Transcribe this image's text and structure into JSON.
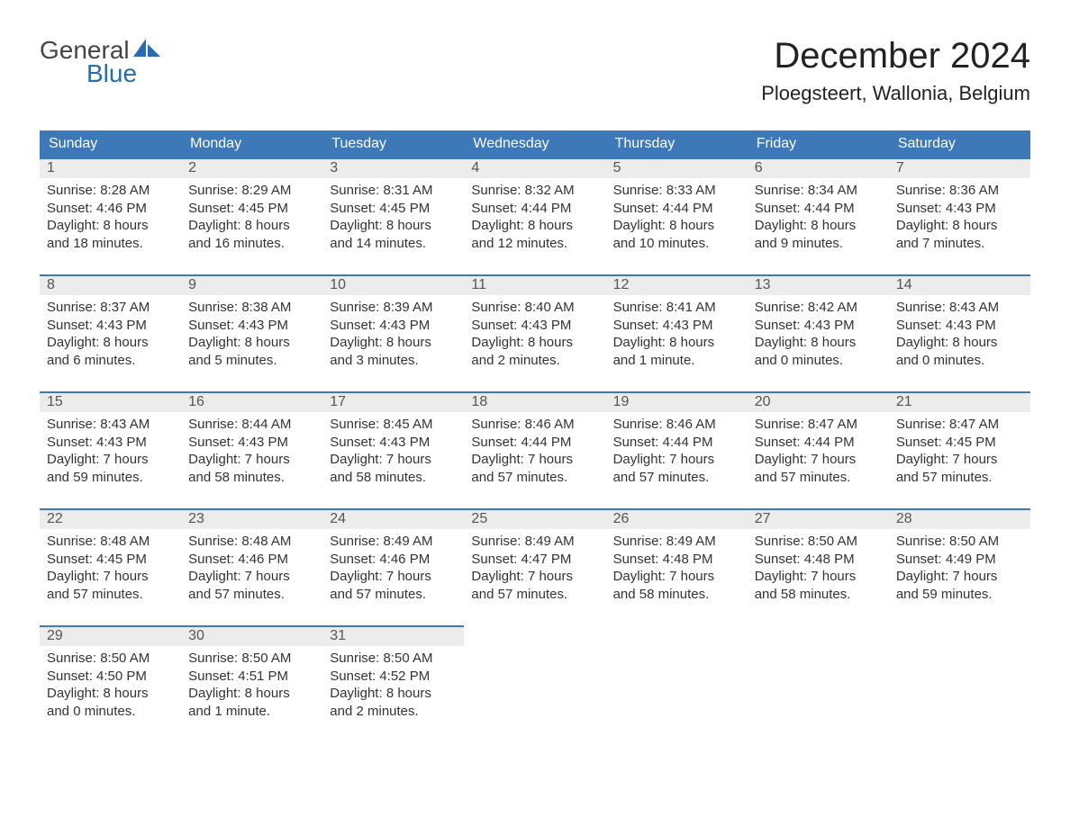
{
  "logo": {
    "word1": "General",
    "word2": "Blue"
  },
  "title": "December 2024",
  "location": "Ploegsteert, Wallonia, Belgium",
  "colors": {
    "header_bg": "#3d78b8",
    "header_text": "#ffffff",
    "daynum_bg": "#ececec",
    "daynum_text": "#555555",
    "body_text": "#333333",
    "accent_blue": "#2b6cb0",
    "page_bg": "#ffffff"
  },
  "typography": {
    "title_fontsize": 40,
    "location_fontsize": 22,
    "header_fontsize": 16,
    "body_fontsize": 15,
    "logo_fontsize": 28
  },
  "layout": {
    "columns": 7,
    "rows": 5,
    "start_weekday": "Sunday"
  },
  "weekdays": [
    "Sunday",
    "Monday",
    "Tuesday",
    "Wednesday",
    "Thursday",
    "Friday",
    "Saturday"
  ],
  "days": [
    {
      "n": 1,
      "sunrise": "8:28 AM",
      "sunset": "4:46 PM",
      "daylight": "8 hours and 18 minutes."
    },
    {
      "n": 2,
      "sunrise": "8:29 AM",
      "sunset": "4:45 PM",
      "daylight": "8 hours and 16 minutes."
    },
    {
      "n": 3,
      "sunrise": "8:31 AM",
      "sunset": "4:45 PM",
      "daylight": "8 hours and 14 minutes."
    },
    {
      "n": 4,
      "sunrise": "8:32 AM",
      "sunset": "4:44 PM",
      "daylight": "8 hours and 12 minutes."
    },
    {
      "n": 5,
      "sunrise": "8:33 AM",
      "sunset": "4:44 PM",
      "daylight": "8 hours and 10 minutes."
    },
    {
      "n": 6,
      "sunrise": "8:34 AM",
      "sunset": "4:44 PM",
      "daylight": "8 hours and 9 minutes."
    },
    {
      "n": 7,
      "sunrise": "8:36 AM",
      "sunset": "4:43 PM",
      "daylight": "8 hours and 7 minutes."
    },
    {
      "n": 8,
      "sunrise": "8:37 AM",
      "sunset": "4:43 PM",
      "daylight": "8 hours and 6 minutes."
    },
    {
      "n": 9,
      "sunrise": "8:38 AM",
      "sunset": "4:43 PM",
      "daylight": "8 hours and 5 minutes."
    },
    {
      "n": 10,
      "sunrise": "8:39 AM",
      "sunset": "4:43 PM",
      "daylight": "8 hours and 3 minutes."
    },
    {
      "n": 11,
      "sunrise": "8:40 AM",
      "sunset": "4:43 PM",
      "daylight": "8 hours and 2 minutes."
    },
    {
      "n": 12,
      "sunrise": "8:41 AM",
      "sunset": "4:43 PM",
      "daylight": "8 hours and 1 minute."
    },
    {
      "n": 13,
      "sunrise": "8:42 AM",
      "sunset": "4:43 PM",
      "daylight": "8 hours and 0 minutes."
    },
    {
      "n": 14,
      "sunrise": "8:43 AM",
      "sunset": "4:43 PM",
      "daylight": "8 hours and 0 minutes."
    },
    {
      "n": 15,
      "sunrise": "8:43 AM",
      "sunset": "4:43 PM",
      "daylight": "7 hours and 59 minutes."
    },
    {
      "n": 16,
      "sunrise": "8:44 AM",
      "sunset": "4:43 PM",
      "daylight": "7 hours and 58 minutes."
    },
    {
      "n": 17,
      "sunrise": "8:45 AM",
      "sunset": "4:43 PM",
      "daylight": "7 hours and 58 minutes."
    },
    {
      "n": 18,
      "sunrise": "8:46 AM",
      "sunset": "4:44 PM",
      "daylight": "7 hours and 57 minutes."
    },
    {
      "n": 19,
      "sunrise": "8:46 AM",
      "sunset": "4:44 PM",
      "daylight": "7 hours and 57 minutes."
    },
    {
      "n": 20,
      "sunrise": "8:47 AM",
      "sunset": "4:44 PM",
      "daylight": "7 hours and 57 minutes."
    },
    {
      "n": 21,
      "sunrise": "8:47 AM",
      "sunset": "4:45 PM",
      "daylight": "7 hours and 57 minutes."
    },
    {
      "n": 22,
      "sunrise": "8:48 AM",
      "sunset": "4:45 PM",
      "daylight": "7 hours and 57 minutes."
    },
    {
      "n": 23,
      "sunrise": "8:48 AM",
      "sunset": "4:46 PM",
      "daylight": "7 hours and 57 minutes."
    },
    {
      "n": 24,
      "sunrise": "8:49 AM",
      "sunset": "4:46 PM",
      "daylight": "7 hours and 57 minutes."
    },
    {
      "n": 25,
      "sunrise": "8:49 AM",
      "sunset": "4:47 PM",
      "daylight": "7 hours and 57 minutes."
    },
    {
      "n": 26,
      "sunrise": "8:49 AM",
      "sunset": "4:48 PM",
      "daylight": "7 hours and 58 minutes."
    },
    {
      "n": 27,
      "sunrise": "8:50 AM",
      "sunset": "4:48 PM",
      "daylight": "7 hours and 58 minutes."
    },
    {
      "n": 28,
      "sunrise": "8:50 AM",
      "sunset": "4:49 PM",
      "daylight": "7 hours and 59 minutes."
    },
    {
      "n": 29,
      "sunrise": "8:50 AM",
      "sunset": "4:50 PM",
      "daylight": "8 hours and 0 minutes."
    },
    {
      "n": 30,
      "sunrise": "8:50 AM",
      "sunset": "4:51 PM",
      "daylight": "8 hours and 1 minute."
    },
    {
      "n": 31,
      "sunrise": "8:50 AM",
      "sunset": "4:52 PM",
      "daylight": "8 hours and 2 minutes."
    }
  ],
  "labels": {
    "sunrise": "Sunrise:",
    "sunset": "Sunset:",
    "daylight": "Daylight:"
  }
}
